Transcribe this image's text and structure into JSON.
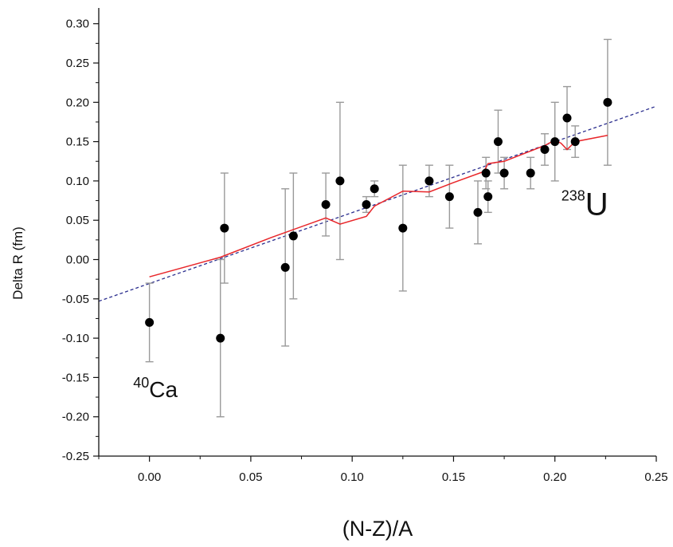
{
  "chart_data": {
    "type": "scatter",
    "xlabel": "(N-Z)/A",
    "ylabel": "Delta R (fm)",
    "xlim": [
      -0.025,
      0.25
    ],
    "ylim": [
      -0.25,
      0.32
    ],
    "x_ticks": [
      "0.00",
      "0.05",
      "0.10",
      "0.15",
      "0.20",
      "0.25"
    ],
    "x_tick_values": [
      0,
      0.05,
      0.1,
      0.15,
      0.2,
      0.25
    ],
    "y_ticks": [
      "0.30",
      "0.25",
      "0.20",
      "0.15",
      "0.10",
      "0.05",
      "0.00",
      "-0.05",
      "-0.10",
      "-0.15",
      "-0.20",
      "-0.25"
    ],
    "y_tick_values": [
      0.3,
      0.25,
      0.2,
      0.15,
      0.1,
      0.05,
      0,
      -0.05,
      -0.1,
      -0.15,
      -0.2,
      -0.25
    ],
    "grid": false,
    "points": [
      {
        "x": 0.0,
        "y": -0.08,
        "err": 0.05
      },
      {
        "x": 0.035,
        "y": -0.1,
        "err": 0.1
      },
      {
        "x": 0.037,
        "y": 0.04,
        "err": 0.07
      },
      {
        "x": 0.067,
        "y": -0.01,
        "err": 0.1
      },
      {
        "x": 0.071,
        "y": 0.03,
        "err": 0.08
      },
      {
        "x": 0.087,
        "y": 0.07,
        "err": 0.04
      },
      {
        "x": 0.094,
        "y": 0.1,
        "err": 0.1
      },
      {
        "x": 0.107,
        "y": 0.07,
        "err": 0.01
      },
      {
        "x": 0.111,
        "y": 0.09,
        "err": 0.01
      },
      {
        "x": 0.125,
        "y": 0.04,
        "err": 0.08
      },
      {
        "x": 0.138,
        "y": 0.1,
        "err": 0.02
      },
      {
        "x": 0.148,
        "y": 0.08,
        "err": 0.04
      },
      {
        "x": 0.162,
        "y": 0.06,
        "err": 0.04
      },
      {
        "x": 0.166,
        "y": 0.11,
        "err": 0.02
      },
      {
        "x": 0.167,
        "y": 0.08,
        "err": 0.02
      },
      {
        "x": 0.172,
        "y": 0.15,
        "err": 0.04
      },
      {
        "x": 0.175,
        "y": 0.11,
        "err": 0.02
      },
      {
        "x": 0.188,
        "y": 0.11,
        "err": 0.02
      },
      {
        "x": 0.195,
        "y": 0.14,
        "err": 0.02
      },
      {
        "x": 0.2,
        "y": 0.15,
        "err": 0.05
      },
      {
        "x": 0.206,
        "y": 0.18,
        "err": 0.04
      },
      {
        "x": 0.21,
        "y": 0.15,
        "err": 0.02
      },
      {
        "x": 0.226,
        "y": 0.2,
        "err": 0.08
      }
    ],
    "model_curve": {
      "color": "#e8262a",
      "x": [
        0.0,
        0.035,
        0.06,
        0.087,
        0.094,
        0.107,
        0.111,
        0.125,
        0.138,
        0.15,
        0.165,
        0.167,
        0.175,
        0.195,
        0.2,
        0.203,
        0.206,
        0.21,
        0.226
      ],
      "y": [
        -0.022,
        0.003,
        0.028,
        0.053,
        0.045,
        0.055,
        0.068,
        0.087,
        0.086,
        0.098,
        0.112,
        0.122,
        0.125,
        0.145,
        0.152,
        0.148,
        0.14,
        0.15,
        0.158
      ]
    },
    "fit_line": {
      "color": "#2b2e8e",
      "x": [
        -0.025,
        0.25
      ],
      "y": [
        -0.053,
        0.195
      ]
    },
    "marker_color": "#000000",
    "errorbar_color": "#9a9a9a",
    "annotations": [
      {
        "sup": "40",
        "text": "Ca",
        "x": -0.008,
        "y": -0.175
      },
      {
        "sup": "238",
        "text": "U",
        "x": 0.222,
        "y": 0.057
      }
    ]
  }
}
